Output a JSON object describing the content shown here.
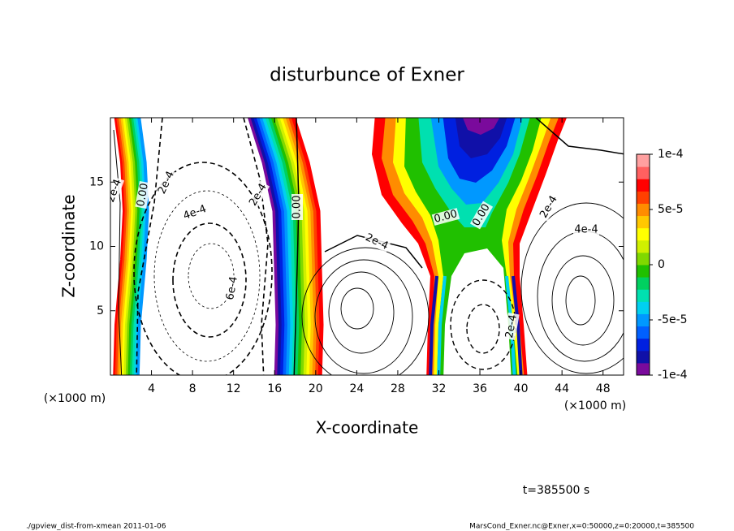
{
  "chart_data": {
    "type": "contour",
    "title": "disturbunce of Exner",
    "xlabel": "X-coordinate",
    "ylabel": "Z-coordinate",
    "xunit": "(×1000 m)",
    "yunit": "(×1000 m)",
    "xlim": [
      0,
      50
    ],
    "xticks": [
      4,
      8,
      12,
      16,
      20,
      24,
      28,
      32,
      36,
      40,
      44,
      48
    ],
    "ylim": [
      0,
      20
    ],
    "yticks": [
      5,
      10,
      15
    ],
    "clim": [
      -0.0001,
      0.0001
    ],
    "cticks": [
      {
        "value": 0.0001,
        "label": "1e-4"
      },
      {
        "value": 5e-05,
        "label": "5e-5"
      },
      0,
      {
        "value": -5e-05,
        "label": "-5e-5"
      },
      {
        "value": -0.0001,
        "label": "-1e-4"
      }
    ],
    "colors": [
      "#7a0a9c",
      "#1010a8",
      "#0020e0",
      "#0060ff",
      "#0098ff",
      "#00d0f0",
      "#00e0b0",
      "#00d060",
      "#20c000",
      "#80d800",
      "#d0f000",
      "#ffff00",
      "#ffc800",
      "#ff8c00",
      "#ff4000",
      "#ff0000",
      "#ff6060",
      "#ffa0a0"
    ],
    "contour_labels": [
      "2e-4",
      "0.00",
      "2e-4",
      "4e-4",
      "6e-4",
      "2e-4",
      "0.00",
      "2e-4",
      "0.00",
      "0.00",
      "2e-4",
      "4e-4",
      "2e-4"
    ],
    "time_label": "t=385500 s",
    "footer_left": "./gpview_dist-from-xmean  2011-01-06",
    "footer_right": "MarsCond_Exner.nc@Exner,x=0:50000,z=0:20000,t=385500"
  }
}
